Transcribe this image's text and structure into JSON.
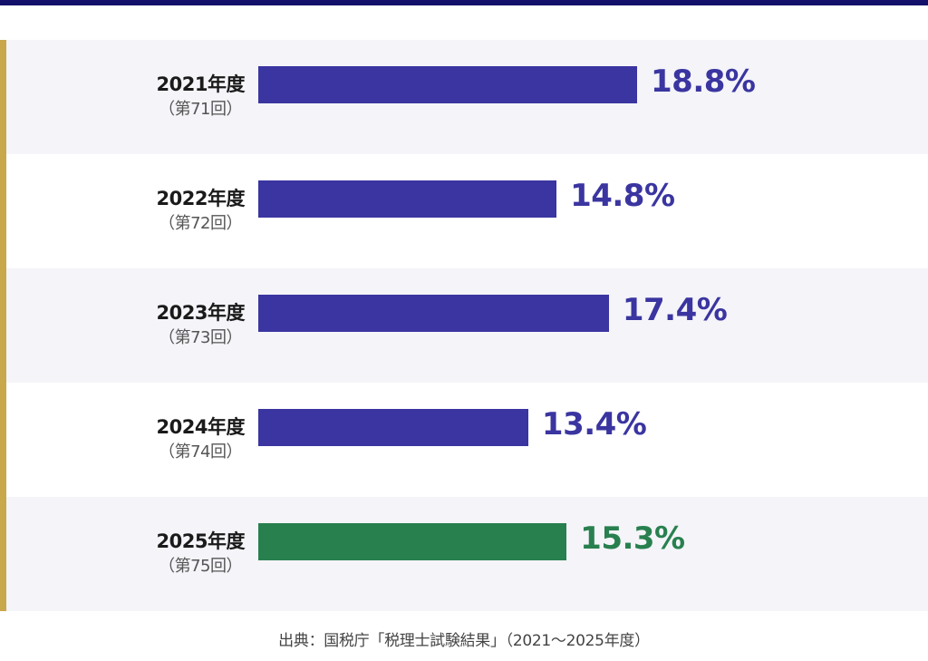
{
  "colors": {
    "top_bar": "#12106a",
    "accent_rule": "#c9a84c",
    "bar_default": "#3a35a0",
    "bar_highlight": "#28804f",
    "row_shade": "#f4f4f9"
  },
  "chart_data": {
    "type": "bar",
    "orientation": "horizontal",
    "unit": "%",
    "xlim": [
      0,
      20
    ],
    "grid": false,
    "highlight_index": 4,
    "categories": [
      "2021年度",
      "2022年度",
      "2023年度",
      "2024年度",
      "2025年度"
    ],
    "sublabels": [
      "（第71回）",
      "（第72回）",
      "（第73回）",
      "（第74回）",
      "（第75回）"
    ],
    "values": [
      18.8,
      14.8,
      17.4,
      13.4,
      15.3
    ],
    "value_labels": [
      "18.8%",
      "14.8%",
      "17.4%",
      "13.4%",
      "15.3%"
    ]
  },
  "source": "出典：国税庁「税理士試験結果」（2021〜2025年度）"
}
